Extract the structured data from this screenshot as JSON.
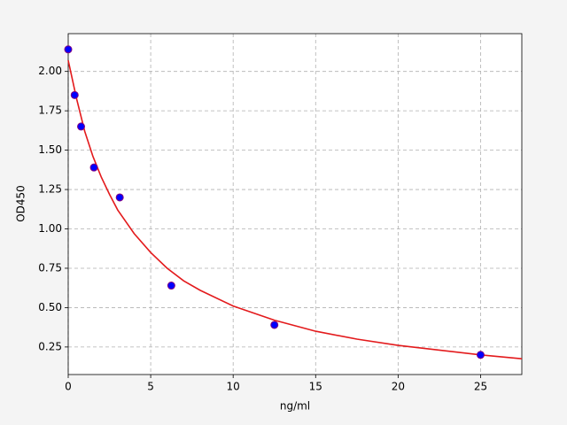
{
  "chart_data": {
    "type": "scatter",
    "xlabel": "ng/ml",
    "ylabel": "OD450",
    "xlim": [
      0,
      27.5
    ],
    "ylim": [
      0.075,
      2.24
    ],
    "xticks": [
      0,
      5,
      10,
      15,
      20,
      25
    ],
    "yticks": [
      0.25,
      {
        "value": 0.5,
        "label": "0.50"
      },
      0.75,
      {
        "value": 1,
        "label": "1.00"
      },
      1.25,
      {
        "value": 1.5,
        "label": "1.50"
      },
      1.75,
      {
        "value": 2,
        "label": "2.00"
      }
    ],
    "grid": true,
    "series": [
      {
        "type": "scatter",
        "color": "#0000ff",
        "edge_color": "#800080",
        "x": [
          0,
          0.39,
          0.78,
          1.56,
          3.125,
          6.25,
          12.5,
          25
        ],
        "values": [
          2.14,
          1.85,
          1.65,
          1.39,
          1.2,
          0.64,
          0.39,
          0.2
        ]
      },
      {
        "type": "line",
        "color": "#e31a1c",
        "x": [
          0,
          0.5,
          1,
          1.5,
          2,
          2.5,
          3,
          4,
          5,
          6,
          7,
          8,
          10,
          12.5,
          15,
          17.5,
          20,
          22.5,
          25,
          27.5
        ],
        "values": [
          2.07,
          1.83,
          1.62,
          1.46,
          1.33,
          1.22,
          1.12,
          0.97,
          0.85,
          0.75,
          0.67,
          0.61,
          0.51,
          0.42,
          0.35,
          0.3,
          0.26,
          0.23,
          0.2,
          0.175
        ]
      }
    ]
  }
}
